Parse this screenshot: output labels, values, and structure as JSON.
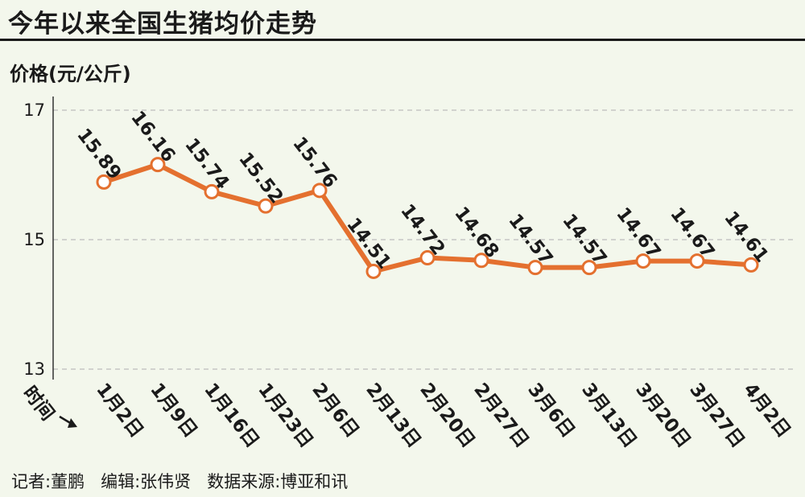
{
  "title": "今年以来全国生猪均价走势",
  "footer": "记者:董鹏   编辑:张伟贤   数据来源:博亚和讯",
  "chart_data": {
    "type": "line",
    "title": "今年以来全国生猪均价走势",
    "ylabel": "价格(元/公斤)",
    "xlabel": "时间",
    "ylim": [
      13,
      17
    ],
    "yticks": [
      13,
      15,
      17
    ],
    "grid": true,
    "categories": [
      "1月2日",
      "1月9日",
      "1月16日",
      "1月23日",
      "2月6日",
      "2月13日",
      "2月20日",
      "2月27日",
      "3月6日",
      "3月13日",
      "3月20日",
      "3月27日",
      "4月2日"
    ],
    "series": [
      {
        "values": [
          15.89,
          16.16,
          15.74,
          15.52,
          15.76,
          14.51,
          14.72,
          14.68,
          14.57,
          14.57,
          14.67,
          14.67,
          14.61
        ],
        "labels": [
          "15.89",
          "16.16",
          "15.74",
          "15.52",
          "15.76",
          "14.51",
          "14.72",
          "14.68",
          "14.57",
          "14.57",
          "14.67",
          "14.67",
          "14.61"
        ]
      }
    ],
    "colors": {
      "line": "#e4702f",
      "marker_fill": "#ffffff",
      "grid": "#bdbdbd",
      "axis": "#333333"
    }
  }
}
